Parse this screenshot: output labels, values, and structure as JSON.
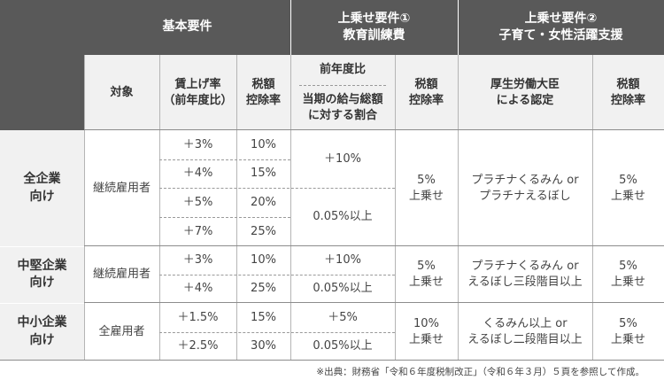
{
  "header": {
    "basic": "基本要件",
    "add1": "上乗せ要件①\n教育訓練費",
    "add2": "上乗せ要件②\n子育て・女性活躍支援",
    "target": "対象",
    "wage_rate": "賃上げ率\n（前年度比）",
    "deduction": "税額\n控除率",
    "prev_ratio": "前年度比",
    "salary_ratio": "当期の給与総額\nに対する割合",
    "deduction2": "税額\n控除率",
    "mhlw_cert": "厚生労働大臣\nによる認定",
    "deduction3": "税額\n控除率"
  },
  "groups": [
    {
      "name": "全企業\n向け",
      "target": "継続雇用者",
      "rates": [
        {
          "wage": "＋3%",
          "deduction": "10%"
        },
        {
          "wage": "＋4%",
          "deduction": "15%"
        },
        {
          "wage": "＋5%",
          "deduction": "20%"
        },
        {
          "wage": "＋7%",
          "deduction": "25%"
        }
      ],
      "education": [
        "＋10%",
        "0.05%以上"
      ],
      "education_add": "5%\n上乗せ",
      "certification": "プラチナくるみん or\nプラチナえるぼし",
      "certification_add": "5%\n上乗せ"
    },
    {
      "name": "中堅企業\n向け",
      "target": "継続雇用者",
      "rates": [
        {
          "wage": "＋3%",
          "deduction": "10%"
        },
        {
          "wage": "＋4%",
          "deduction": "25%"
        }
      ],
      "education": [
        "＋10%",
        "0.05%以上"
      ],
      "education_add": "5%\n上乗せ",
      "certification": "プラチナくるみん or\nえるぼし三段階目以上",
      "certification_add": "5%\n上乗せ"
    },
    {
      "name": "中小企業\n向け",
      "target": "全雇用者",
      "rates": [
        {
          "wage": "＋1.5%",
          "deduction": "15%"
        },
        {
          "wage": "＋2.5%",
          "deduction": "30%"
        }
      ],
      "education": [
        "＋5%",
        "0.05%以上"
      ],
      "education_add": "10%\n上乗せ",
      "certification": "くるみん以上 or\nえるぼし二段階目以上",
      "certification_add": "5%\n上乗せ"
    }
  ],
  "footnote": "※出典：財務省「令和６年度税制改正」（令和６年３月）５頁を参照して作成。"
}
